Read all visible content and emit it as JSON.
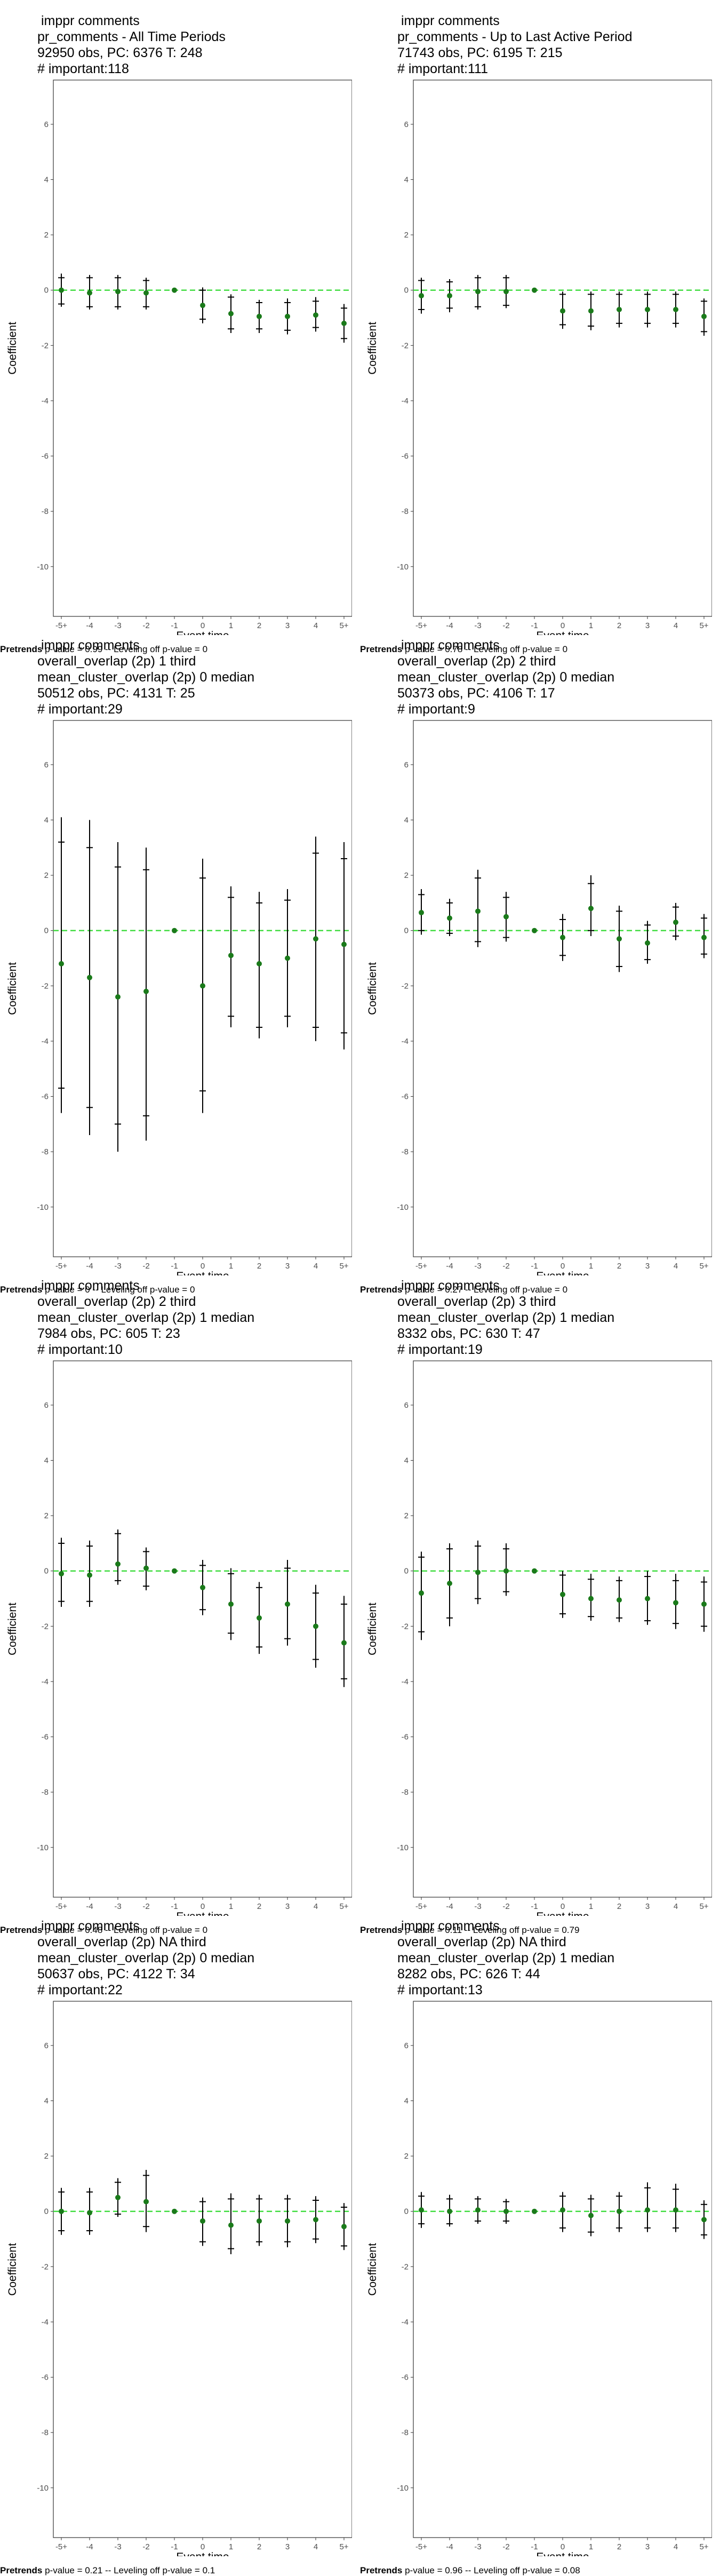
{
  "colors": {
    "point": "#1a7a1a",
    "zero_line": "#44dd44",
    "ci": "#000000",
    "axis_text": "#4d4d4d",
    "panel_border": "#333333"
  },
  "shared": {
    "xlabel": "Event time",
    "ylabel": "Coefficient",
    "x_ticks": [
      "-5+",
      "-4",
      "-3",
      "-2",
      "-1",
      "0",
      "1",
      "2",
      "3",
      "4",
      "5+"
    ],
    "y_ticks": [
      6,
      4,
      2,
      0,
      -2,
      -4,
      -6,
      -8,
      -10
    ],
    "ylim": [
      -11.8,
      7.6
    ]
  },
  "chart_data": [
    {
      "type": "scatter",
      "title_lines": [
        " imppr comments",
        "pr_comments - All Time Periods",
        "92950 obs, PC: 6376 T: 248",
        "# important:118"
      ],
      "footnote_bold": "Pretrends",
      "footnote_rest": " p-value = 0.99 -- Leveling off p-value = 0",
      "estimates": [
        0.0,
        -0.1,
        -0.05,
        -0.1,
        0.0,
        -0.55,
        -0.85,
        -0.95,
        -0.95,
        -0.9,
        -1.2
      ],
      "ci95": [
        [
          -0.6,
          0.6
        ],
        [
          -0.7,
          0.55
        ],
        [
          -0.7,
          0.55
        ],
        [
          -0.7,
          0.45
        ],
        [
          0.0,
          0.0
        ],
        [
          -1.2,
          0.1
        ],
        [
          -1.55,
          -0.15
        ],
        [
          -1.55,
          -0.35
        ],
        [
          -1.6,
          -0.3
        ],
        [
          -1.5,
          -0.25
        ],
        [
          -1.9,
          -0.5
        ]
      ],
      "ci90": [
        [
          -0.5,
          0.45
        ],
        [
          -0.6,
          0.45
        ],
        [
          -0.6,
          0.45
        ],
        [
          -0.6,
          0.35
        ],
        [
          0.0,
          0.0
        ],
        [
          -1.05,
          0.0
        ],
        [
          -1.4,
          -0.25
        ],
        [
          -1.4,
          -0.45
        ],
        [
          -1.45,
          -0.45
        ],
        [
          -1.35,
          -0.4
        ],
        [
          -1.75,
          -0.65
        ]
      ]
    },
    {
      "type": "scatter",
      "title_lines": [
        " imppr comments",
        "pr_comments - Up to Last Active Period",
        "71743 obs, PC: 6195 T: 215",
        "# important:111"
      ],
      "footnote_bold": "Pretrends",
      "footnote_rest": " p-value = 0.78 -- Leveling off p-value = 0",
      "estimates": [
        -0.2,
        -0.2,
        -0.05,
        -0.05,
        0.0,
        -0.75,
        -0.75,
        -0.7,
        -0.7,
        -0.7,
        -0.95
      ],
      "ci95": [
        [
          -0.85,
          0.45
        ],
        [
          -0.8,
          0.4
        ],
        [
          -0.7,
          0.55
        ],
        [
          -0.65,
          0.55
        ],
        [
          0.0,
          0.0
        ],
        [
          -1.4,
          -0.05
        ],
        [
          -1.45,
          -0.05
        ],
        [
          -1.35,
          -0.05
        ],
        [
          -1.35,
          -0.05
        ],
        [
          -1.35,
          -0.05
        ],
        [
          -1.65,
          -0.3
        ]
      ],
      "ci90": [
        [
          -0.7,
          0.35
        ],
        [
          -0.65,
          0.3
        ],
        [
          -0.6,
          0.45
        ],
        [
          -0.55,
          0.45
        ],
        [
          0.0,
          0.0
        ],
        [
          -1.25,
          -0.15
        ],
        [
          -1.3,
          -0.15
        ],
        [
          -1.2,
          -0.15
        ],
        [
          -1.2,
          -0.15
        ],
        [
          -1.2,
          -0.15
        ],
        [
          -1.5,
          -0.4
        ]
      ]
    },
    {
      "type": "scatter",
      "title_lines": [
        " imppr comments",
        "overall_overlap (2p) 1 third",
        "mean_cluster_overlap (2p) 0 median",
        "50512 obs, PC: 4131 T: 25",
        "# important:29"
      ],
      "footnote_bold": "Pretrends",
      "footnote_rest": " p-value = 0 -- Leveling off p-value = 0",
      "estimates": [
        -1.2,
        -1.7,
        -2.4,
        -2.2,
        0.0,
        -2.0,
        -0.9,
        -1.2,
        -1.0,
        -0.3,
        -0.5
      ],
      "ci95": [
        [
          -6.6,
          4.1
        ],
        [
          -7.4,
          4.0
        ],
        [
          -8.0,
          3.2
        ],
        [
          -7.6,
          3.0
        ],
        [
          0.0,
          0.0
        ],
        [
          -6.6,
          2.6
        ],
        [
          -3.5,
          1.6
        ],
        [
          -3.9,
          1.4
        ],
        [
          -3.5,
          1.5
        ],
        [
          -4.0,
          3.4
        ],
        [
          -4.3,
          3.2
        ]
      ],
      "ci90": [
        [
          -5.7,
          3.2
        ],
        [
          -6.4,
          3.0
        ],
        [
          -7.0,
          2.3
        ],
        [
          -6.7,
          2.2
        ],
        [
          0.0,
          0.0
        ],
        [
          -5.8,
          1.9
        ],
        [
          -3.1,
          1.2
        ],
        [
          -3.5,
          1.0
        ],
        [
          -3.1,
          1.1
        ],
        [
          -3.5,
          2.8
        ],
        [
          -3.7,
          2.6
        ]
      ]
    },
    {
      "type": "scatter",
      "title_lines": [
        " imppr comments",
        "overall_overlap (2p) 2 third",
        "mean_cluster_overlap (2p) 0 median",
        "50373 obs, PC: 4106 T: 17",
        "# important:9"
      ],
      "footnote_bold": "Pretrends",
      "footnote_rest": " p-value = 0.27 -- Leveling off p-value = 0",
      "estimates": [
        0.65,
        0.45,
        0.7,
        0.5,
        0.0,
        -0.25,
        0.8,
        -0.3,
        -0.45,
        0.3,
        -0.25
      ],
      "ci95": [
        [
          -0.15,
          1.5
        ],
        [
          -0.2,
          1.15
        ],
        [
          -0.6,
          2.2
        ],
        [
          -0.4,
          1.4
        ],
        [
          0.0,
          0.0
        ],
        [
          -1.1,
          0.6
        ],
        [
          -0.2,
          2.0
        ],
        [
          -1.5,
          0.9
        ],
        [
          -1.2,
          0.35
        ],
        [
          -0.35,
          1.0
        ],
        [
          -1.0,
          0.6
        ]
      ],
      "ci90": [
        [
          0.0,
          1.3
        ],
        [
          -0.1,
          1.0
        ],
        [
          -0.4,
          1.9
        ],
        [
          -0.25,
          1.2
        ],
        [
          0.0,
          0.0
        ],
        [
          -0.9,
          0.4
        ],
        [
          0.0,
          1.7
        ],
        [
          -1.3,
          0.7
        ],
        [
          -1.05,
          0.2
        ],
        [
          -0.2,
          0.85
        ],
        [
          -0.85,
          0.45
        ]
      ]
    },
    {
      "type": "scatter",
      "title_lines": [
        " imppr comments",
        "overall_overlap (2p) 2 third",
        "mean_cluster_overlap (2p) 1 median",
        "7984 obs, PC: 605 T: 23",
        "# important:10"
      ],
      "footnote_bold": "Pretrends",
      "footnote_rest": " p-value = 0.48 -- Leveling off p-value = 0",
      "estimates": [
        -0.1,
        -0.15,
        0.25,
        0.1,
        0.0,
        -0.6,
        -1.2,
        -1.7,
        -1.2,
        -2.0,
        -2.6
      ],
      "ci95": [
        [
          -1.3,
          1.2
        ],
        [
          -1.3,
          1.1
        ],
        [
          -0.5,
          1.5
        ],
        [
          -0.7,
          0.85
        ],
        [
          0.0,
          0.0
        ],
        [
          -1.6,
          0.4
        ],
        [
          -2.5,
          0.1
        ],
        [
          -3.0,
          -0.4
        ],
        [
          -2.7,
          0.4
        ],
        [
          -3.5,
          -0.5
        ],
        [
          -4.2,
          -0.9
        ]
      ],
      "ci90": [
        [
          -1.1,
          1.0
        ],
        [
          -1.1,
          0.9
        ],
        [
          -0.35,
          1.35
        ],
        [
          -0.55,
          0.7
        ],
        [
          0.0,
          0.0
        ],
        [
          -1.4,
          0.2
        ],
        [
          -2.25,
          -0.1
        ],
        [
          -2.75,
          -0.6
        ],
        [
          -2.45,
          0.1
        ],
        [
          -3.2,
          -0.8
        ],
        [
          -3.9,
          -1.2
        ]
      ]
    },
    {
      "type": "scatter",
      "title_lines": [
        " imppr comments",
        "overall_overlap (2p) 3 third",
        "mean_cluster_overlap (2p) 1 median",
        "8332 obs, PC: 630 T: 47",
        "# important:19"
      ],
      "footnote_bold": "Pretrends",
      "footnote_rest": " p-value = 0.11 -- Leveling off p-value = 0.79",
      "estimates": [
        -0.8,
        -0.45,
        -0.05,
        0.0,
        0.0,
        -0.85,
        -1.0,
        -1.05,
        -1.0,
        -1.15,
        -1.2
      ],
      "ci95": [
        [
          -2.5,
          0.7
        ],
        [
          -2.0,
          1.0
        ],
        [
          -1.2,
          1.1
        ],
        [
          -0.9,
          1.0
        ],
        [
          0.0,
          0.0
        ],
        [
          -1.7,
          0.0
        ],
        [
          -1.8,
          -0.1
        ],
        [
          -1.85,
          -0.2
        ],
        [
          -1.95,
          0.0
        ],
        [
          -2.1,
          -0.1
        ],
        [
          -2.2,
          -0.2
        ]
      ],
      "ci90": [
        [
          -2.2,
          0.5
        ],
        [
          -1.7,
          0.8
        ],
        [
          -1.0,
          0.9
        ],
        [
          -0.75,
          0.8
        ],
        [
          0.0,
          0.0
        ],
        [
          -1.55,
          -0.15
        ],
        [
          -1.65,
          -0.3
        ],
        [
          -1.7,
          -0.35
        ],
        [
          -1.8,
          -0.2
        ],
        [
          -1.9,
          -0.35
        ],
        [
          -2.0,
          -0.4
        ]
      ]
    },
    {
      "type": "scatter",
      "title_lines": [
        " imppr comments",
        "overall_overlap (2p) NA third",
        "mean_cluster_overlap (2p) 0 median",
        "50637 obs, PC: 4122 T: 34",
        "# important:22"
      ],
      "footnote_bold": "Pretrends",
      "footnote_rest": " p-value = 0.21 -- Leveling off p-value = 0.1",
      "estimates": [
        0.0,
        -0.05,
        0.5,
        0.35,
        0.0,
        -0.35,
        -0.5,
        -0.35,
        -0.35,
        -0.3,
        -0.55
      ],
      "ci95": [
        [
          -0.85,
          0.85
        ],
        [
          -0.85,
          0.85
        ],
        [
          -0.2,
          1.2
        ],
        [
          -0.75,
          1.5
        ],
        [
          0.0,
          0.0
        ],
        [
          -1.25,
          0.5
        ],
        [
          -1.55,
          0.65
        ],
        [
          -1.25,
          0.6
        ],
        [
          -1.3,
          0.6
        ],
        [
          -1.15,
          0.55
        ],
        [
          -1.4,
          0.3
        ]
      ],
      "ci90": [
        [
          -0.7,
          0.7
        ],
        [
          -0.7,
          0.7
        ],
        [
          -0.1,
          1.05
        ],
        [
          -0.55,
          1.3
        ],
        [
          0.0,
          0.0
        ],
        [
          -1.1,
          0.35
        ],
        [
          -1.35,
          0.45
        ],
        [
          -1.1,
          0.45
        ],
        [
          -1.1,
          0.45
        ],
        [
          -1.0,
          0.4
        ],
        [
          -1.25,
          0.15
        ]
      ]
    },
    {
      "type": "scatter",
      "title_lines": [
        " imppr comments",
        "overall_overlap (2p) NA third",
        "mean_cluster_overlap (2p) 1 median",
        "8282 obs, PC: 626 T: 44",
        "# important:13"
      ],
      "footnote_bold": "Pretrends",
      "footnote_rest": " p-value = 0.96 -- Leveling off p-value = 0.08",
      "estimates": [
        0.05,
        0.0,
        0.05,
        0.0,
        0.0,
        0.05,
        -0.15,
        0.0,
        0.05,
        0.05,
        -0.3
      ],
      "ci95": [
        [
          -0.6,
          0.7
        ],
        [
          -0.55,
          0.6
        ],
        [
          -0.45,
          0.55
        ],
        [
          -0.45,
          0.45
        ],
        [
          0.0,
          0.0
        ],
        [
          -0.75,
          0.7
        ],
        [
          -0.9,
          0.6
        ],
        [
          -0.75,
          0.7
        ],
        [
          -0.75,
          1.05
        ],
        [
          -0.75,
          1.0
        ],
        [
          -1.0,
          0.4
        ]
      ],
      "ci90": [
        [
          -0.45,
          0.55
        ],
        [
          -0.45,
          0.45
        ],
        [
          -0.35,
          0.45
        ],
        [
          -0.35,
          0.35
        ],
        [
          0.0,
          0.0
        ],
        [
          -0.6,
          0.55
        ],
        [
          -0.75,
          0.45
        ],
        [
          -0.6,
          0.55
        ],
        [
          -0.6,
          0.85
        ],
        [
          -0.6,
          0.8
        ],
        [
          -0.85,
          0.25
        ]
      ]
    }
  ]
}
